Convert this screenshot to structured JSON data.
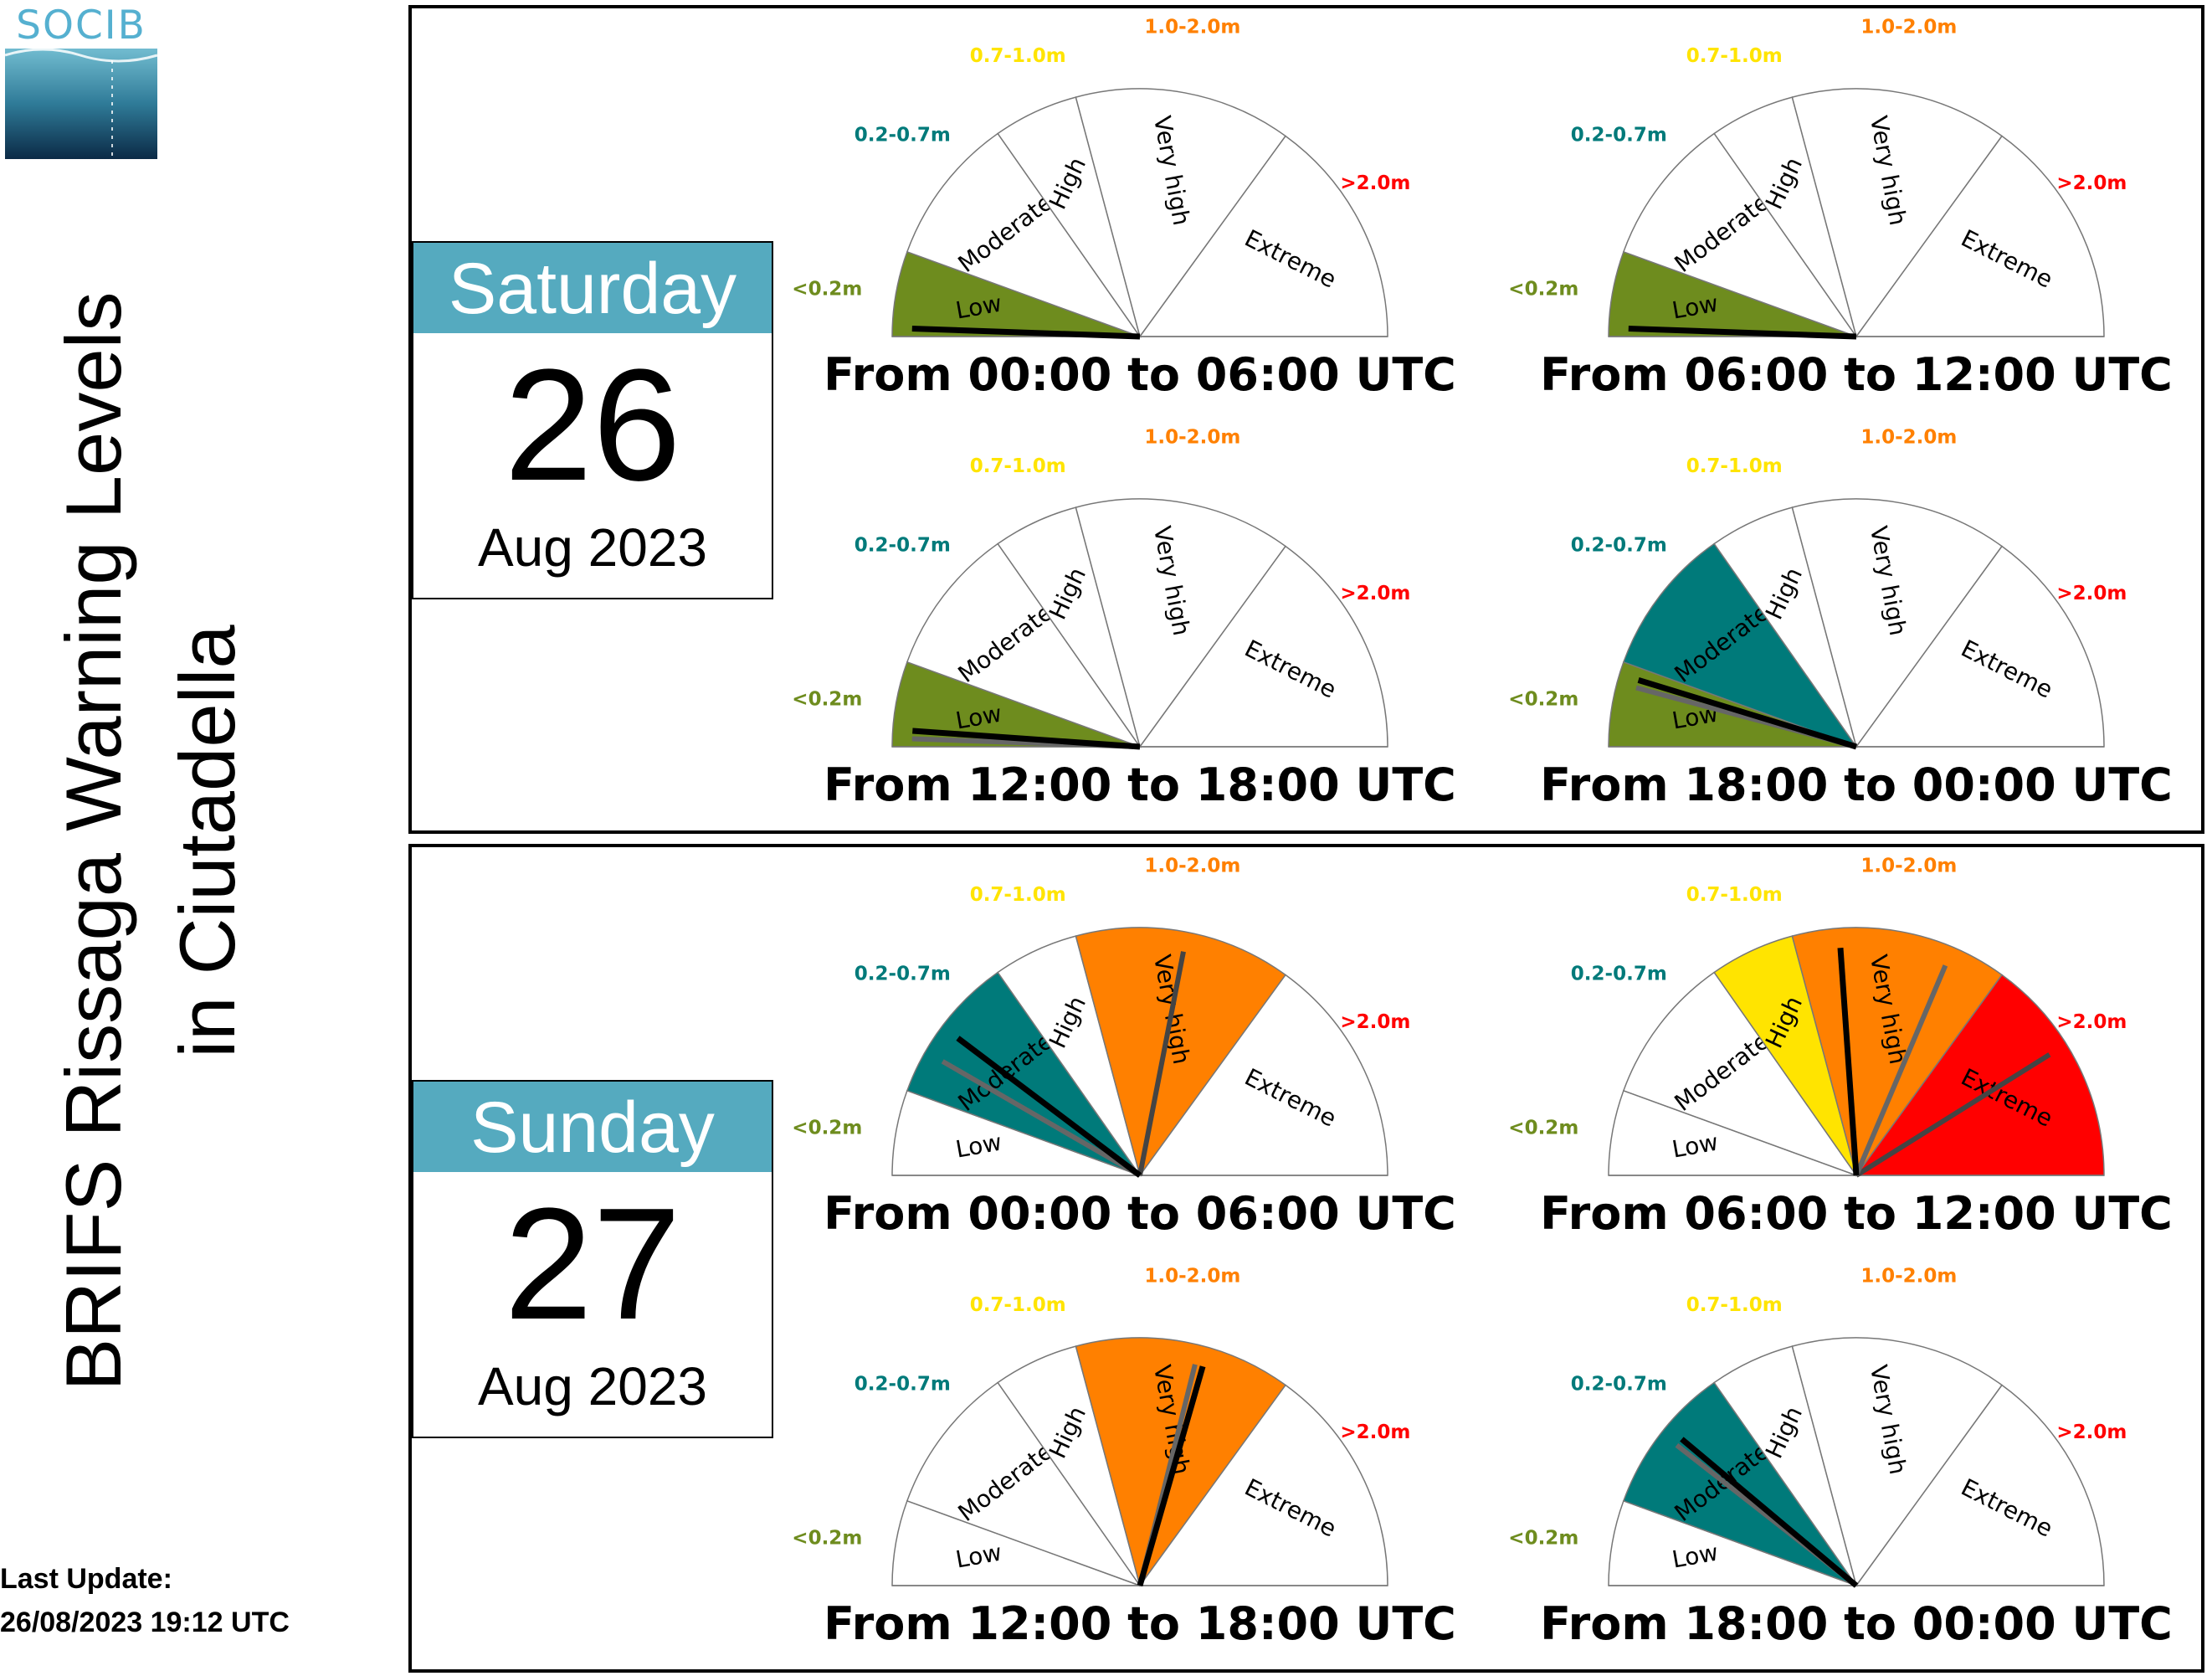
{
  "logo": {
    "text": "SOCIB",
    "icon": "socib-logo-icon"
  },
  "title": {
    "line1": "BRIFS Rissaga Warning Levels",
    "line2": "in Ciutadella"
  },
  "last_update": {
    "label": "Last Update:",
    "value": "26/08/2023 19:12 UTC"
  },
  "chart_data": {
    "type": "gauge",
    "levels": [
      {
        "name": "Low",
        "range": "<0.2m",
        "color": "#6e8c1e"
      },
      {
        "name": "Moderate",
        "range": "0.2-0.7m",
        "color": "#007a7a"
      },
      {
        "name": "High",
        "range": "0.7-1.0m",
        "color": "#ffe400"
      },
      {
        "name": "Very high",
        "range": "1.0-2.0m",
        "color": "#ff8000"
      },
      {
        "name": "Extreme",
        "range": ">2.0m",
        "color": "#ff0000"
      }
    ],
    "level_bounds_deg": [
      0,
      20,
      55,
      75,
      126,
      180
    ],
    "days": [
      {
        "weekday": "Saturday",
        "day": "26",
        "month_year": "Aug 2023",
        "periods": [
          {
            "label": "From 00:00 to 06:00 UTC",
            "active_levels": [
              0
            ],
            "needles_deg": [
              2
            ]
          },
          {
            "label": "From 06:00 to 12:00 UTC",
            "active_levels": [
              0
            ],
            "needles_deg": [
              2
            ]
          },
          {
            "label": "From 12:00 to 18:00 UTC",
            "active_levels": [
              0
            ],
            "needles_deg": [
              4,
              2
            ]
          },
          {
            "label": "From 18:00 to 00:00 UTC",
            "active_levels": [
              0,
              1
            ],
            "needles_deg": [
              17,
              15
            ]
          }
        ]
      },
      {
        "weekday": "Sunday",
        "day": "27",
        "month_year": "Aug 2023",
        "periods": [
          {
            "label": "From 00:00 to 06:00 UTC",
            "active_levels": [
              1,
              3
            ],
            "needles_deg": [
              37,
              30,
              101
            ]
          },
          {
            "label": "From 06:00 to 12:00 UTC",
            "active_levels": [
              2,
              3,
              4
            ],
            "needles_deg": [
              86,
              113,
              148
            ]
          },
          {
            "label": "From 12:00 to 18:00 UTC",
            "active_levels": [
              3
            ],
            "needles_deg": [
              106,
              104
            ]
          },
          {
            "label": "From 18:00 to 00:00 UTC",
            "active_levels": [
              1
            ],
            "needles_deg": [
              40,
              38
            ]
          }
        ]
      }
    ]
  }
}
